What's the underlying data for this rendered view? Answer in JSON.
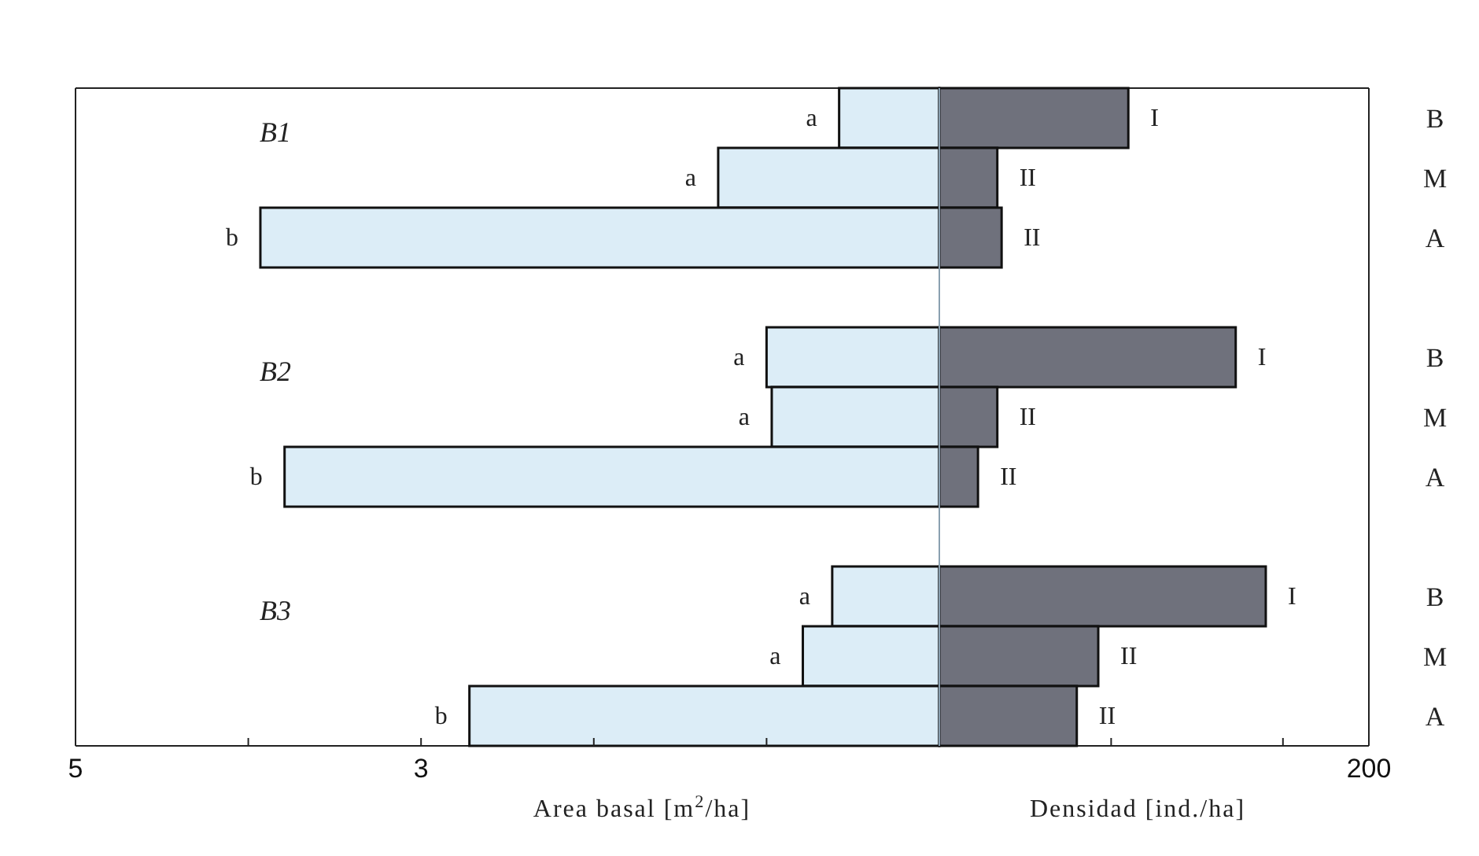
{
  "chart_data": [
    {
      "type": "bar",
      "orientation": "horizontal",
      "xlabel": "Area basal [m$^{2}$/ha]",
      "xlim": [
        5,
        0
      ],
      "xticks": [
        5,
        {
          "value": 4,
          "label": null
        },
        3,
        {
          "value": 2,
          "label": null
        },
        {
          "value": 1,
          "label": null
        }
      ],
      "tick_labels": "x",
      "series": [
        {
          "color": "#dcedf7",
          "values": [
            0.58,
            1.28,
            3.93,
            null,
            1.0,
            0.97,
            3.79,
            null,
            0.62,
            0.79,
            2.72
          ],
          "value_labels": [
            "a",
            "a",
            "b",
            null,
            "a",
            "a",
            "b",
            null,
            "a",
            "a",
            "b"
          ]
        }
      ],
      "annotations": [
        "B1",
        "B2",
        "B3"
      ]
    },
    {
      "type": "bar",
      "orientation": "horizontal",
      "xlabel": "Densidad [ind./ha]",
      "categories": [
        "B",
        "M",
        "A",
        null,
        "B",
        "M",
        "A",
        null,
        "B",
        "M",
        "A"
      ],
      "xlim": [
        0,
        200
      ],
      "xticks": [
        {
          "value": 80,
          "label": null
        },
        {
          "value": 160,
          "label": null
        },
        200
      ],
      "series": [
        {
          "color": "#6f717c",
          "values": [
            88,
            27,
            29,
            null,
            138,
            27,
            18,
            null,
            152,
            74,
            64
          ],
          "value_labels": [
            "I",
            "II",
            "II",
            null,
            "I",
            "II",
            "II",
            null,
            "I",
            "II",
            "II"
          ]
        }
      ]
    }
  ]
}
